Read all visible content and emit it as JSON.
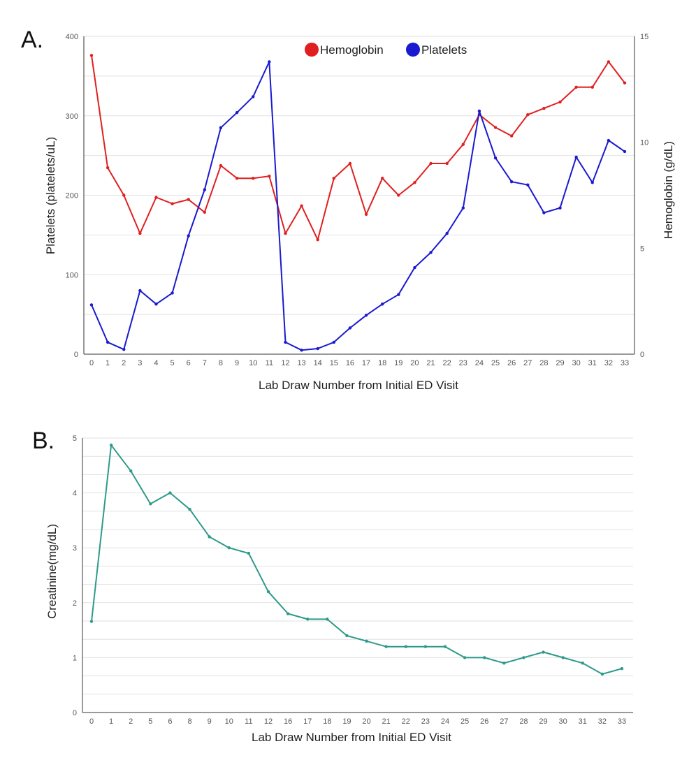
{
  "panels": {
    "a_label": "A.",
    "b_label": "B."
  },
  "chart_data": [
    {
      "type": "line",
      "x": [
        0,
        1,
        2,
        3,
        4,
        5,
        6,
        7,
        8,
        9,
        10,
        11,
        12,
        13,
        14,
        15,
        16,
        17,
        18,
        19,
        20,
        21,
        22,
        23,
        24,
        25,
        26,
        27,
        28,
        29,
        30,
        31,
        32,
        33
      ],
      "xlabel": "Lab Draw Number from Initial ED Visit",
      "ylabel_left": "Platelets (platelets/uL)",
      "ylabel_right": "Hemoglobin (g/dL)",
      "ylim_left": [
        0,
        400
      ],
      "yticks_left": [
        0,
        100,
        200,
        300,
        400
      ],
      "ylim_right": [
        0,
        15
      ],
      "yticks_right": [
        0,
        5,
        10,
        15
      ],
      "grid": true,
      "legend_position": "top-center",
      "series": [
        {
          "name": "Hemoglobin",
          "axis": "right",
          "color": "#e02020",
          "values": [
            14.1,
            8.8,
            7.5,
            5.7,
            7.4,
            7.1,
            7.3,
            6.7,
            8.9,
            8.3,
            8.3,
            8.4,
            5.7,
            7.0,
            5.4,
            8.3,
            9.0,
            6.6,
            8.3,
            7.5,
            8.1,
            9.0,
            9.0,
            9.9,
            11.3,
            10.7,
            10.3,
            11.3,
            11.6,
            11.9,
            12.6,
            12.6,
            13.8,
            12.8
          ]
        },
        {
          "name": "Platelets",
          "axis": "left",
          "color": "#1a1ad0",
          "values": [
            62,
            15,
            6,
            80,
            63,
            77,
            149,
            207,
            285,
            304,
            324,
            368,
            15,
            5,
            7,
            15,
            33,
            49,
            63,
            75,
            109,
            128,
            152,
            184,
            306,
            247,
            217,
            213,
            178,
            184,
            248,
            216,
            269,
            255
          ]
        }
      ]
    },
    {
      "type": "line",
      "categories": [
        "0",
        "1",
        "2",
        "5",
        "6",
        "8",
        "9",
        "10",
        "11",
        "12",
        "16",
        "17",
        "18",
        "19",
        "20",
        "21",
        "22",
        "23",
        "24",
        "25",
        "26",
        "27",
        "28",
        "29",
        "30",
        "31",
        "32",
        "33"
      ],
      "xlabel": "Lab Draw Number from Initial ED Visit",
      "ylabel": "Creatinine(mg/dL)",
      "ylim": [
        0,
        5
      ],
      "yticks": [
        0,
        1,
        2,
        3,
        4,
        5
      ],
      "grid": true,
      "series": [
        {
          "color": "#2e9a8a",
          "values": [
            1.66,
            4.87,
            4.4,
            3.8,
            4.0,
            3.7,
            3.2,
            3.0,
            2.9,
            2.2,
            1.8,
            1.7,
            1.7,
            1.4,
            1.3,
            1.2,
            1.2,
            1.2,
            1.2,
            1.0,
            1.0,
            0.9,
            1.0,
            1.1,
            1.0,
            0.9,
            0.7,
            0.8
          ]
        }
      ]
    }
  ]
}
